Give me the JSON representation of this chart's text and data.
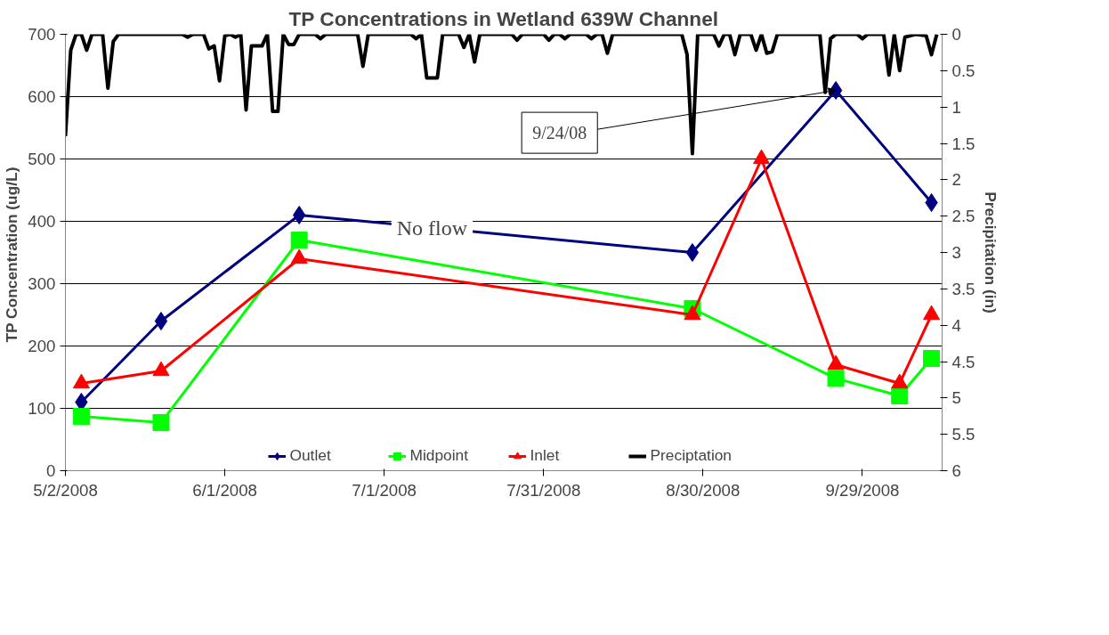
{
  "chart_data": {
    "type": "line",
    "title": "TP Concentrations in Wetland 639W Channel",
    "ylabel": "TP Concentration  (ug/L)",
    "y2label": "Precipitation (in)",
    "annotations": [
      {
        "text": "9/24/08",
        "x": "2008-09-24",
        "y": 610
      },
      "No flow"
    ],
    "xlim": [
      "2008-05-02",
      "2008-10-14"
    ],
    "xticks": [
      {
        "value": "2008-05-02",
        "label": "5/2/2008"
      },
      {
        "value": "2008-06-01",
        "label": "6/1/2008"
      },
      {
        "value": "2008-07-01",
        "label": "7/1/2008"
      },
      {
        "value": "2008-07-31",
        "label": "7/31/2008"
      },
      {
        "value": "2008-08-30",
        "label": "8/30/2008"
      },
      {
        "value": "2008-09-29",
        "label": "9/29/2008"
      }
    ],
    "ylim": [
      0,
      700
    ],
    "yticks": [
      0,
      100,
      200,
      300,
      400,
      500,
      600,
      700
    ],
    "y2lim": [
      6,
      0
    ],
    "y2ticks": [
      0,
      0.5,
      1,
      1.5,
      2,
      2.5,
      3,
      3.5,
      4,
      4.5,
      5,
      5.5,
      6
    ],
    "grid": "y",
    "legend": "bottom",
    "series": [
      {
        "name": "Outlet",
        "color": "#000080",
        "marker": "diamond",
        "x": [
          "2008-05-05",
          "2008-05-20",
          "2008-06-15",
          "2008-08-28",
          "2008-09-24",
          "2008-10-12"
        ],
        "values": [
          110,
          240,
          410,
          350,
          610,
          430
        ]
      },
      {
        "name": "Midpoint",
        "color": "#00ff00",
        "marker": "square",
        "x": [
          "2008-05-05",
          "2008-05-20",
          "2008-06-15",
          "2008-08-28",
          "2008-09-24",
          "2008-10-06",
          "2008-10-12"
        ],
        "values": [
          87,
          77,
          370,
          260,
          148,
          120,
          180
        ]
      },
      {
        "name": "Inlet",
        "color": "#ff0000",
        "marker": "triangle",
        "x": [
          "2008-05-05",
          "2008-05-20",
          "2008-06-15",
          "2008-08-28",
          "2008-09-10",
          "2008-09-24",
          "2008-10-06",
          "2008-10-12"
        ],
        "values": [
          140,
          160,
          340,
          250,
          500,
          170,
          140,
          250
        ]
      },
      {
        "name": "Preciptation",
        "color": "#000000",
        "marker": "none",
        "axis": "y2",
        "x": [
          "2008-05-02",
          "2008-05-03",
          "2008-05-04",
          "2008-05-05",
          "2008-05-06",
          "2008-05-07",
          "2008-05-09",
          "2008-05-10",
          "2008-05-11",
          "2008-05-12",
          "2008-05-24",
          "2008-05-25",
          "2008-05-26",
          "2008-05-28",
          "2008-05-29",
          "2008-05-30",
          "2008-05-31",
          "2008-06-01",
          "2008-06-02",
          "2008-06-03",
          "2008-06-04",
          "2008-06-05",
          "2008-06-06",
          "2008-06-07",
          "2008-06-08",
          "2008-06-09",
          "2008-06-10",
          "2008-06-11",
          "2008-06-12",
          "2008-06-13",
          "2008-06-14",
          "2008-06-15",
          "2008-06-18",
          "2008-06-19",
          "2008-06-20",
          "2008-06-26",
          "2008-06-27",
          "2008-06-28",
          "2008-07-06",
          "2008-07-07",
          "2008-07-08",
          "2008-07-09",
          "2008-07-11",
          "2008-07-12",
          "2008-07-15",
          "2008-07-16",
          "2008-07-17",
          "2008-07-18",
          "2008-07-19",
          "2008-07-25",
          "2008-07-26",
          "2008-07-27",
          "2008-07-31",
          "2008-08-01",
          "2008-08-02",
          "2008-08-03",
          "2008-08-04",
          "2008-08-05",
          "2008-08-08",
          "2008-08-09",
          "2008-08-10",
          "2008-08-11",
          "2008-08-12",
          "2008-08-13",
          "2008-08-26",
          "2008-08-27",
          "2008-08-28",
          "2008-08-29",
          "2008-09-01",
          "2008-09-02",
          "2008-09-03",
          "2008-09-04",
          "2008-09-05",
          "2008-09-06",
          "2008-09-08",
          "2008-09-09",
          "2008-09-10",
          "2008-09-11",
          "2008-09-12",
          "2008-09-13",
          "2008-09-21",
          "2008-09-22",
          "2008-09-23",
          "2008-09-24",
          "2008-09-28",
          "2008-09-29",
          "2008-09-30",
          "2008-10-03",
          "2008-10-04",
          "2008-10-05",
          "2008-10-06",
          "2008-10-07",
          "2008-10-08",
          "2008-10-09",
          "2008-10-11",
          "2008-10-12",
          "2008-10-13"
        ],
        "values": [
          1.4,
          0.22,
          0,
          0,
          0.22,
          0,
          0,
          0.74,
          0.1,
          0,
          0,
          0.04,
          0,
          0,
          0.2,
          0.16,
          0.64,
          0.02,
          0,
          0.04,
          0,
          1.04,
          0.16,
          0.16,
          0.16,
          0,
          1.06,
          1.06,
          0,
          0.14,
          0.14,
          0,
          0,
          0.06,
          0,
          0,
          0.44,
          0,
          0,
          0.06,
          0,
          0.6,
          0.6,
          0,
          0,
          0.18,
          0,
          0.38,
          0,
          0,
          0.08,
          0,
          0,
          0.08,
          0,
          0,
          0.06,
          0,
          0,
          0.06,
          0,
          0,
          0.26,
          0,
          0,
          0.28,
          1.64,
          0,
          0,
          0.16,
          0,
          0,
          0.28,
          0,
          0,
          0.22,
          0,
          0.26,
          0.24,
          0,
          0,
          0.8,
          0.06,
          0,
          0,
          0.06,
          0,
          0,
          0.56,
          0,
          0.5,
          0.04,
          0.02,
          0,
          0.02,
          0.28,
          0
        ]
      }
    ]
  }
}
